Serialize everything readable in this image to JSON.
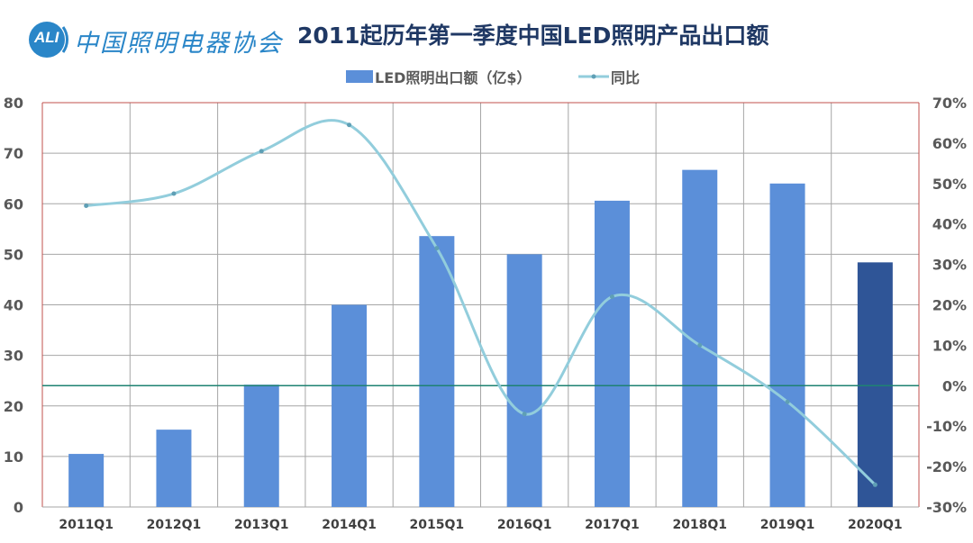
{
  "header": {
    "logo_abbr": "ALI",
    "logo_text": "中国照明电器协会"
  },
  "colors": {
    "bar": "#5b8fd9",
    "bar_highlight": "#2f5597",
    "line": "#92cddc",
    "zero_line": "#1e8272",
    "grid": "#a6a6a6",
    "logo": "#2a86c8",
    "title": "#1f3864"
  },
  "icons": [
    "logo-circle-icon"
  ],
  "chart_data": {
    "type": "bar",
    "title": "2011起历年第一季度中国LED照明产品出口额",
    "categories": [
      "2011Q1",
      "2012Q1",
      "2013Q1",
      "2014Q1",
      "2015Q1",
      "2016Q1",
      "2017Q1",
      "2018Q1",
      "2019Q1",
      "2020Q1"
    ],
    "series": [
      {
        "name": "LED照明出口额（亿$）",
        "type": "bar",
        "axis": "left",
        "values": [
          10.5,
          15.3,
          24.2,
          40.0,
          53.6,
          50.0,
          60.6,
          66.7,
          64.0,
          48.4
        ]
      },
      {
        "name": "同比",
        "type": "line",
        "axis": "right",
        "values": [
          44.5,
          47.5,
          58.0,
          64.5,
          34.0,
          -7.0,
          22.0,
          10.0,
          -4.0,
          -24.5
        ]
      }
    ],
    "left_axis": {
      "ylim": [
        0,
        80
      ],
      "ticks": [
        0,
        10,
        20,
        30,
        40,
        50,
        60,
        70,
        80
      ]
    },
    "right_axis": {
      "ylim": [
        -30,
        70
      ],
      "ticks": [
        -30,
        -20,
        -10,
        0,
        10,
        20,
        30,
        40,
        50,
        60,
        70
      ],
      "unit": "%"
    },
    "highlighted_category": "2020Q1",
    "grid": true,
    "legend_position": "top"
  }
}
